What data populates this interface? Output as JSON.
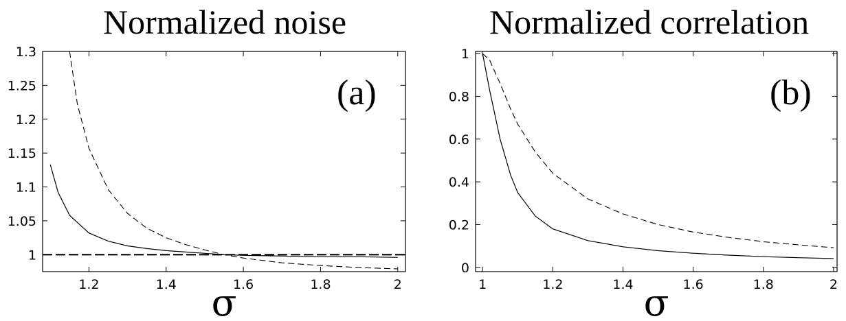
{
  "chart_data": [
    {
      "type": "line",
      "title": "Normalized noise",
      "panel_label": "(a)",
      "xlabel": "σ",
      "ylabel": "",
      "xlim": [
        1.08,
        2.02
      ],
      "ylim": [
        0.975,
        1.3
      ],
      "xticks": [
        1.2,
        1.4,
        1.6,
        1.8,
        2
      ],
      "xtick_labels": [
        "1.2",
        "1.4",
        "1.6",
        "1.8",
        "2"
      ],
      "yticks": [
        1,
        1.05,
        1.1,
        1.15,
        1.2,
        1.25,
        1.3
      ],
      "ytick_labels": [
        "1",
        "1.05",
        "1.1",
        "1.15",
        "1.2",
        "1.25",
        "1.3"
      ],
      "grid": false,
      "series": [
        {
          "style": "solid",
          "x": [
            1.1,
            1.12,
            1.15,
            1.2,
            1.25,
            1.3,
            1.35,
            1.4,
            1.45,
            1.5,
            1.55,
            1.6,
            1.7,
            1.8,
            1.9,
            2.0
          ],
          "y": [
            1.133,
            1.092,
            1.058,
            1.032,
            1.02,
            1.013,
            1.009,
            1.006,
            1.004,
            1.002,
            1.0,
            0.999,
            0.998,
            0.997,
            0.997,
            0.996
          ]
        },
        {
          "style": "dashed",
          "x": [
            1.15,
            1.17,
            1.2,
            1.25,
            1.3,
            1.35,
            1.4,
            1.45,
            1.5,
            1.55,
            1.6,
            1.7,
            1.8,
            1.9,
            2.0
          ],
          "y": [
            1.3,
            1.222,
            1.157,
            1.096,
            1.061,
            1.039,
            1.025,
            1.015,
            1.007,
            1.0,
            0.995,
            0.988,
            0.984,
            0.981,
            0.979
          ]
        },
        {
          "style": "dashed-thick",
          "x": [
            1.08,
            2.02
          ],
          "y": [
            1.0,
            1.0
          ]
        }
      ]
    },
    {
      "type": "line",
      "title": "Normalized correlation",
      "panel_label": "(b)",
      "xlabel": "σ",
      "ylabel": "",
      "xlim": [
        0.98,
        2.01
      ],
      "ylim": [
        -0.02,
        1.01
      ],
      "xticks": [
        1,
        1.2,
        1.4,
        1.6,
        1.8,
        2
      ],
      "xtick_labels": [
        "1",
        "1.2",
        "1.4",
        "1.6",
        "1.8",
        "2"
      ],
      "yticks": [
        0,
        0.2,
        0.4,
        0.6,
        0.8,
        1
      ],
      "ytick_labels": [
        "0",
        "0.2",
        "0.4",
        "0.6",
        "0.8",
        "1"
      ],
      "grid": false,
      "series": [
        {
          "style": "solid",
          "x": [
            1.0,
            1.02,
            1.05,
            1.08,
            1.1,
            1.15,
            1.2,
            1.3,
            1.4,
            1.5,
            1.6,
            1.7,
            1.8,
            1.9,
            2.0
          ],
          "y": [
            1.0,
            0.83,
            0.6,
            0.43,
            0.35,
            0.24,
            0.18,
            0.125,
            0.096,
            0.078,
            0.066,
            0.057,
            0.05,
            0.045,
            0.041
          ]
        },
        {
          "style": "dashed",
          "x": [
            1.0,
            1.02,
            1.05,
            1.08,
            1.1,
            1.15,
            1.2,
            1.3,
            1.4,
            1.5,
            1.6,
            1.7,
            1.8,
            1.9,
            2.0
          ],
          "y": [
            1.0,
            0.97,
            0.86,
            0.74,
            0.67,
            0.54,
            0.44,
            0.32,
            0.25,
            0.2,
            0.165,
            0.14,
            0.12,
            0.105,
            0.092
          ]
        }
      ]
    }
  ]
}
